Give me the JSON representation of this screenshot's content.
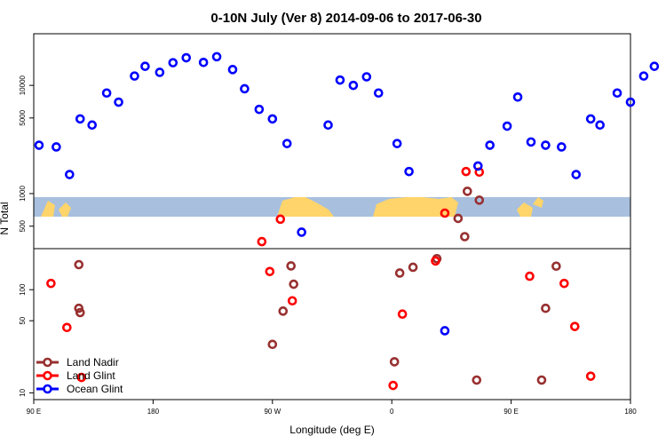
{
  "chart_data": {
    "type": "scatter",
    "title": "0-10N July (Ver 8)   2014-09-06 to 2017-06-30",
    "xlabel": "Longitude (deg E)",
    "ylabel": "N Total",
    "x_ticks": [
      {
        "value": 90,
        "label": "90 E"
      },
      {
        "value": 180,
        "label": "180"
      },
      {
        "value": 270,
        "label": "90 W"
      },
      {
        "value": 360,
        "label": "0"
      },
      {
        "value": 450,
        "label": "90 E"
      },
      {
        "value": 540,
        "label": "180"
      }
    ],
    "xlim": [
      90,
      540
    ],
    "y_scale": "log",
    "upper_panel": {
      "ylim": [
        310,
        30000
      ],
      "ticks": [
        500,
        1000,
        5000,
        10000
      ]
    },
    "lower_panel": {
      "ylim": [
        8.6,
        250
      ],
      "ticks": [
        10,
        50,
        100
      ]
    },
    "map_band": {
      "color": "#a8c0de",
      "land_color": "#ffd46a"
    },
    "legend": {
      "position": "bottom-left"
    },
    "series": [
      {
        "name": "Land Nadir",
        "color": "#983030",
        "points": [
          [
            417,
            1050
          ],
          [
            426,
            870
          ],
          [
            415,
            400
          ],
          [
            410,
            590
          ],
          [
            125,
            60
          ],
          [
            124,
            175
          ],
          [
            124,
            66
          ],
          [
            284,
            170
          ],
          [
            286,
            113
          ],
          [
            278,
            62
          ],
          [
            362,
            20
          ],
          [
            366,
            145
          ],
          [
            376,
            165
          ],
          [
            394,
            200
          ],
          [
            484,
            169
          ],
          [
            476,
            66
          ],
          [
            473,
            13.3
          ],
          [
            270,
            29.5
          ],
          [
            424,
            13.3
          ]
        ]
      },
      {
        "name": "Land Glint",
        "color": "#ff0000",
        "points": [
          [
            276,
            580
          ],
          [
            262,
            360
          ],
          [
            400,
            660
          ],
          [
            416,
            1600
          ],
          [
            426,
            1580
          ],
          [
            103,
            115
          ],
          [
            115,
            43
          ],
          [
            126,
            14.1
          ],
          [
            268,
            150
          ],
          [
            285,
            78
          ],
          [
            368,
            58
          ],
          [
            393,
            190
          ],
          [
            464,
            135
          ],
          [
            490,
            115
          ],
          [
            498,
            44
          ],
          [
            510,
            14.5
          ],
          [
            361,
            11.8
          ]
        ]
      },
      {
        "name": "Ocean Glint",
        "color": "#0000ff",
        "points": [
          [
            94,
            2800
          ],
          [
            107,
            2700
          ],
          [
            117,
            1500
          ],
          [
            125,
            4900
          ],
          [
            134,
            4300
          ],
          [
            145,
            8500
          ],
          [
            154,
            7000
          ],
          [
            166,
            12200
          ],
          [
            174,
            15000
          ],
          [
            185,
            13200
          ],
          [
            195,
            16200
          ],
          [
            205,
            18000
          ],
          [
            218,
            16300
          ],
          [
            228,
            18400
          ],
          [
            240,
            14000
          ],
          [
            249,
            9300
          ],
          [
            260,
            6000
          ],
          [
            270,
            4900
          ],
          [
            281,
            2900
          ],
          [
            292,
            440
          ],
          [
            312,
            4300
          ],
          [
            321,
            11200
          ],
          [
            331,
            10000
          ],
          [
            341,
            12000
          ],
          [
            350,
            8500
          ],
          [
            364,
            2900
          ],
          [
            373,
            1600
          ],
          [
            425,
            1800
          ],
          [
            434,
            2800
          ],
          [
            447,
            4200
          ],
          [
            455,
            7800
          ],
          [
            465,
            3000
          ],
          [
            476,
            2800
          ],
          [
            488,
            2700
          ],
          [
            499,
            1500
          ],
          [
            510,
            4900
          ],
          [
            517,
            4300
          ],
          [
            530,
            8500
          ],
          [
            540,
            7000
          ],
          [
            550,
            12200
          ],
          [
            558,
            15000
          ],
          [
            400,
            40
          ]
        ]
      }
    ]
  }
}
